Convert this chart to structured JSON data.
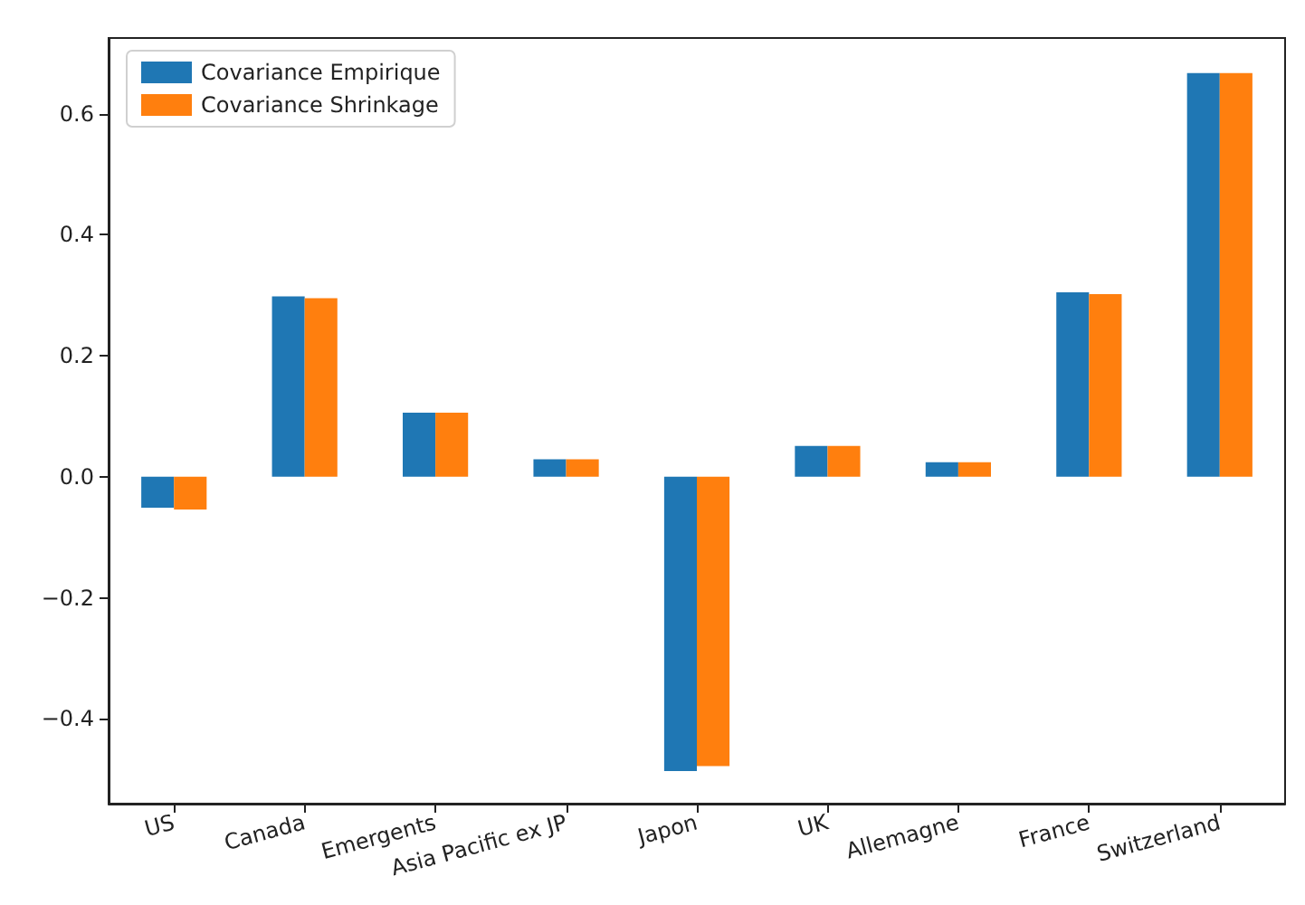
{
  "chart_data": {
    "type": "bar",
    "categories": [
      "US",
      "Canada",
      "Emergents",
      "Asia Pacific ex JP",
      "Japon",
      "UK",
      "Allemagne",
      "France",
      "Switzerland"
    ],
    "series": [
      {
        "name": "Covariance Empirique",
        "color": "#1f77b4",
        "values": [
          -0.051,
          0.298,
          0.106,
          0.029,
          -0.486,
          0.051,
          0.024,
          0.305,
          0.667
        ]
      },
      {
        "name": "Covariance Shrinkage",
        "color": "#ff7f0e",
        "values": [
          -0.054,
          0.295,
          0.106,
          0.029,
          -0.478,
          0.051,
          0.024,
          0.302,
          0.667
        ]
      }
    ],
    "ylim": [
      -0.54,
      0.725
    ],
    "yticks": [
      {
        "value": -0.4,
        "label": "−0.4"
      },
      {
        "value": -0.2,
        "label": "−0.2"
      },
      {
        "value": 0,
        "label": "0.0"
      },
      {
        "value": 0.2,
        "label": "0.2"
      },
      {
        "value": 0.4,
        "label": "0.4"
      },
      {
        "value": 0.6,
        "label": "0.6"
      }
    ],
    "grid": false,
    "legend": "top left"
  }
}
